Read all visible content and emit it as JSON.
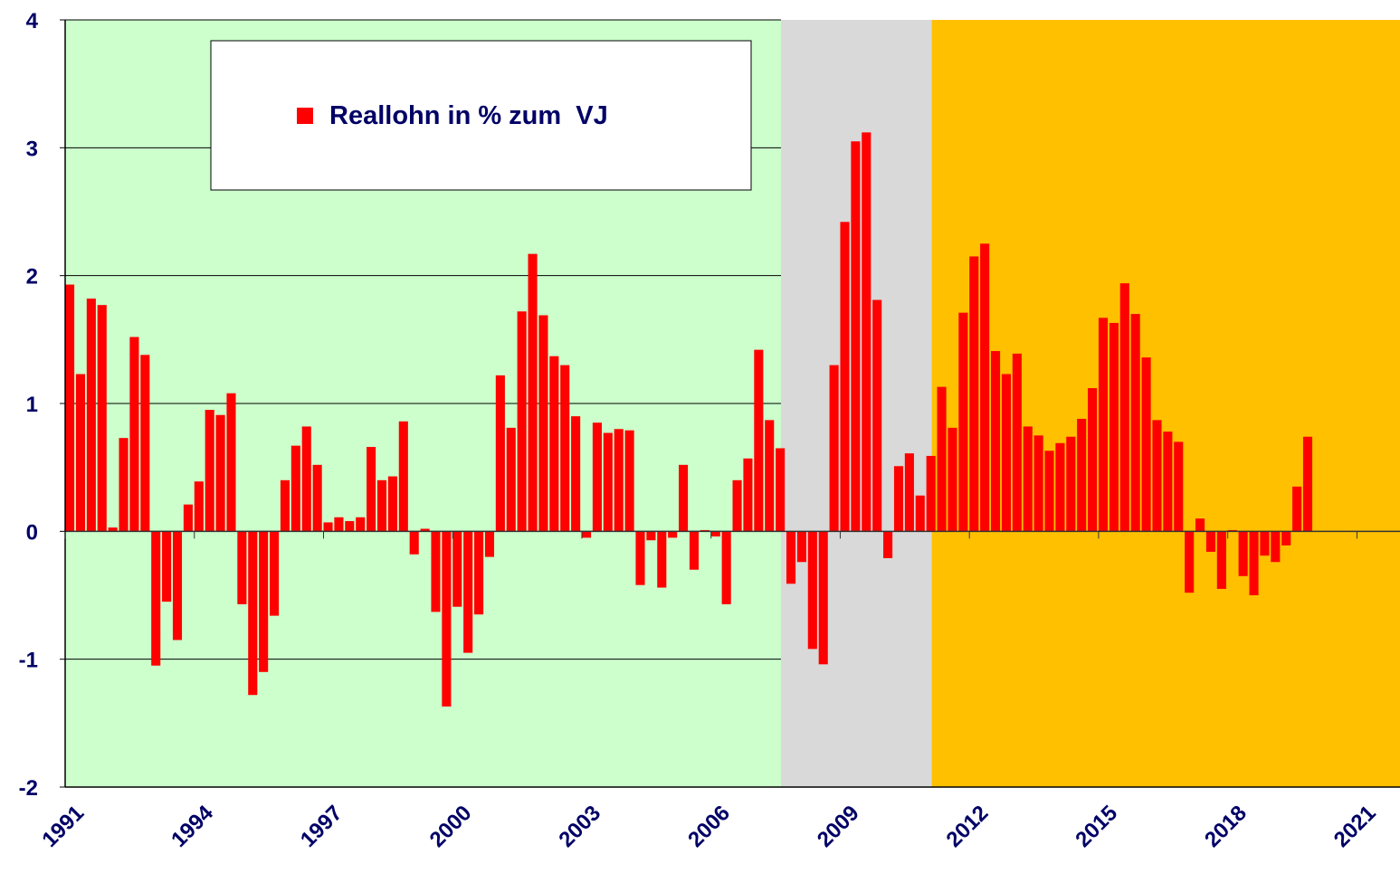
{
  "chart_data": {
    "type": "bar",
    "legend_label": "Reallohn in % zum  VJ",
    "series": [
      {
        "name": "Reallohn in % zum  VJ",
        "color": "#ff0000",
        "x": [
          1991,
          1991.25,
          1991.5,
          1991.75,
          1992,
          1992.25,
          1992.5,
          1992.75,
          1993,
          1993.25,
          1993.5,
          1993.75,
          1994,
          1994.25,
          1994.5,
          1994.75,
          1995,
          1995.25,
          1995.5,
          1995.75,
          1996,
          1996.25,
          1996.5,
          1996.75,
          1997,
          1997.25,
          1997.5,
          1997.75,
          1998,
          1998.25,
          1998.5,
          1998.75,
          1999,
          1999.25,
          1999.5,
          1999.75,
          2000,
          2000.25,
          2000.5,
          2000.75,
          2001,
          2001.25,
          2001.5,
          2001.75,
          2002,
          2002.25,
          2002.5,
          2002.75,
          2003,
          2003.25,
          2003.5,
          2003.75,
          2004,
          2004.25,
          2004.5,
          2004.75,
          2005,
          2005.25,
          2005.5,
          2005.75,
          2006,
          2006.25,
          2006.5,
          2006.75,
          2007,
          2007.25,
          2007.5,
          2007.75,
          2008,
          2008.25,
          2008.5,
          2008.75,
          2009,
          2009.25,
          2009.5,
          2009.75,
          2010,
          2010.25,
          2010.5,
          2010.75,
          2011,
          2011.25,
          2011.5,
          2011.75,
          2012,
          2012.25,
          2012.5,
          2012.75,
          2013,
          2013.25,
          2013.5,
          2013.75,
          2014,
          2014.25,
          2014.5,
          2014.75,
          2015,
          2015.25,
          2015.5,
          2015.75,
          2016,
          2016.25,
          2016.5,
          2016.75,
          2017,
          2017.25,
          2017.5,
          2017.75,
          2018,
          2018.25,
          2018.5,
          2018.75,
          2019,
          2019.25,
          2019.5,
          2019.75
        ],
        "values": [
          1.93,
          1.23,
          1.82,
          1.77,
          0.03,
          0.73,
          1.52,
          1.38,
          -1.05,
          -0.55,
          -0.85,
          0.21,
          0.39,
          0.95,
          0.91,
          1.08,
          -0.57,
          -1.28,
          -1.1,
          -0.66,
          0.4,
          0.67,
          0.82,
          0.52,
          0.07,
          0.11,
          0.08,
          0.11,
          0.66,
          0.4,
          0.43,
          0.86,
          -0.18,
          0.02,
          -0.63,
          -1.37,
          -0.59,
          -0.95,
          -0.65,
          -0.2,
          1.22,
          0.81,
          1.72,
          2.17,
          1.69,
          1.37,
          1.3,
          0.9,
          -0.05,
          0.85,
          0.77,
          0.8,
          0.79,
          -0.42,
          -0.07,
          -0.44,
          -0.05,
          0.52,
          -0.3,
          0.01,
          -0.04,
          -0.57,
          0.4,
          0.57,
          1.42,
          0.87,
          0.65,
          -0.41,
          -0.24,
          -0.92,
          -1.04,
          1.3,
          2.42,
          3.05,
          3.12,
          1.81,
          -0.21,
          0.51,
          0.61,
          0.28,
          0.59,
          1.13,
          0.81,
          1.71,
          2.15,
          2.25,
          1.41,
          1.23,
          1.39,
          0.82,
          0.75,
          0.63,
          0.69,
          0.74,
          0.88,
          1.12,
          1.67,
          1.63,
          1.94,
          1.7,
          1.36,
          0.87,
          0.78,
          0.7,
          -0.48,
          0.1,
          -0.16,
          -0.45,
          0.01,
          -0.35,
          -0.5,
          -0.19,
          -0.24,
          -0.11,
          0.35,
          0.74
        ]
      }
    ],
    "bar_width": 0.25,
    "bands": [
      {
        "from": 1991,
        "to": 2007.625,
        "color": "#ccffcc"
      },
      {
        "from": 2007.625,
        "to": 2011.125,
        "color": "#d9d9d9"
      },
      {
        "from": 2011.125,
        "to": 2022,
        "color": "#ffc000"
      }
    ],
    "xlim": [
      1991,
      2022
    ],
    "xticks": [
      1991,
      1994,
      1997,
      2000,
      2003,
      2006,
      2009,
      2012,
      2015,
      2018,
      2021
    ],
    "ylim": [
      -2,
      4
    ],
    "yticks": [
      -2,
      -1,
      0,
      1,
      2,
      3,
      4
    ],
    "grid": true
  }
}
